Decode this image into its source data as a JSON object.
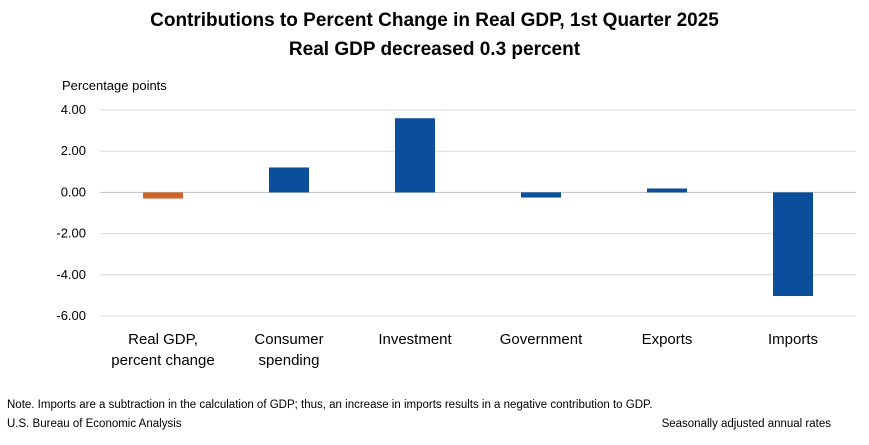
{
  "chart_data": {
    "type": "bar",
    "title": "Contributions to Percent Change in Real GDP, 1st Quarter 2025",
    "subtitle": "Real GDP decreased 0.3 percent",
    "ylabel": "Percentage points",
    "xlabel": "",
    "ylim": [
      -6,
      4
    ],
    "yticks": [
      4,
      2,
      0,
      -2,
      -4,
      -6
    ],
    "ytick_labels": [
      "4.00",
      "2.00",
      "0.00",
      "-2.00",
      "-4.00",
      "-6.00"
    ],
    "grid": true,
    "categories": [
      [
        "Real GDP,",
        "percent change"
      ],
      [
        "Consumer",
        "spending"
      ],
      [
        "Investment"
      ],
      [
        "Government"
      ],
      [
        "Exports"
      ],
      [
        "Imports"
      ]
    ],
    "values": [
      -0.3,
      1.21,
      3.6,
      -0.25,
      0.19,
      -5.03
    ],
    "colors": [
      "#d0632c",
      "#0b4f9c",
      "#0b4f9c",
      "#0b4f9c",
      "#0b4f9c",
      "#0b4f9c"
    ]
  },
  "footer": {
    "note": "Note. Imports are a subtraction in the calculation of GDP; thus, an increase in imports results in a negative contribution to GDP.",
    "source": "U.S. Bureau of Economic Analysis",
    "seasonal": "Seasonally adjusted annual rates"
  }
}
